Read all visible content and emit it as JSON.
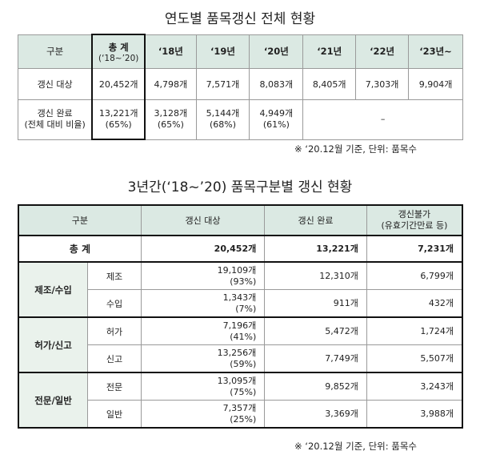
{
  "table1": {
    "title": "연도별 품목갱신 전체 현황",
    "header": {
      "label": "구분",
      "sum_line1": "총 계",
      "sum_line2": "(‘18~’20)",
      "years": [
        "‘18년",
        "‘19년",
        "‘20년",
        "‘21년",
        "‘22년",
        "‘23년~"
      ]
    },
    "row_target": {
      "label": "갱신 대상",
      "sum": "20,452개",
      "values": [
        "4,798개",
        "7,571개",
        "8,083개",
        "8,405개",
        "7,303개",
        "9,904개"
      ]
    },
    "row_done": {
      "label_line1": "갱신 완료",
      "label_line2": "(전체 대비 비율)",
      "sum_line1": "13,221개",
      "sum_line2": "(65%)",
      "values": [
        {
          "count": "3,128개",
          "pct": "(65%)"
        },
        {
          "count": "5,144개",
          "pct": "(68%)"
        },
        {
          "count": "4,949개",
          "pct": "(61%)"
        }
      ],
      "future": "–"
    },
    "note": "※ ‘20.12월 기준, 단위: 품목수"
  },
  "table2": {
    "title": "3년간(‘18~’20) 품목구분별 갱신 현황",
    "header": {
      "label": "구분",
      "target": "갱신 대상",
      "done": "갱신 완료",
      "impossible_line1": "갱신불가",
      "impossible_line2": "(유효기간만료 등)"
    },
    "total": {
      "label": "총 계",
      "target": "20,452개",
      "done": "13,221개",
      "impossible": "7,231개"
    },
    "groups": [
      {
        "name": "제조/수입",
        "rows": [
          {
            "sub": "제조",
            "target": "19,109개",
            "target_pct": "(93%)",
            "done": "12,310개",
            "impossible": "6,799개"
          },
          {
            "sub": "수입",
            "target": "1,343개",
            "target_pct": "(7%)",
            "done": "911개",
            "impossible": "432개"
          }
        ]
      },
      {
        "name": "허가/신고",
        "rows": [
          {
            "sub": "허가",
            "target": "7,196개",
            "target_pct": "(41%)",
            "done": "5,472개",
            "impossible": "1,724개"
          },
          {
            "sub": "신고",
            "target": "13,256개",
            "target_pct": "(59%)",
            "done": "7,749개",
            "impossible": "5,507개"
          }
        ]
      },
      {
        "name": "전문/일반",
        "rows": [
          {
            "sub": "전문",
            "target": "13,095개",
            "target_pct": "(75%)",
            "done": "9,852개",
            "impossible": "3,243개"
          },
          {
            "sub": "일반",
            "target": "7,357개",
            "target_pct": "(25%)",
            "done": "3,369개",
            "impossible": "3,988개"
          }
        ]
      }
    ],
    "note": "※ ‘20.12월 기준, 단위: 품목수"
  }
}
